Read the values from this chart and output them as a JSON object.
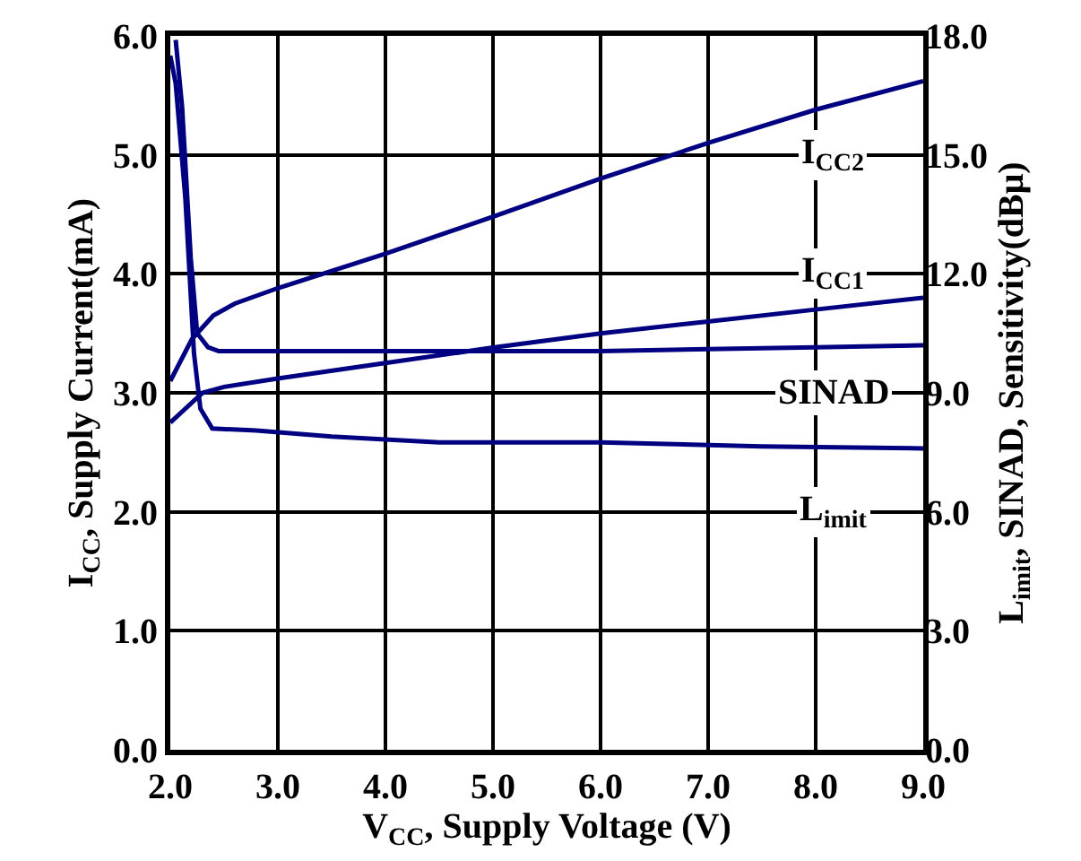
{
  "chart_data": {
    "type": "line",
    "xlabel": "V$_{CC}$, Supply Voltage (V)",
    "ylabel": "I$_{CC}$, Supply Current(mA)",
    "y2label": "L$_{imit}$, SINAD, Sensitivity(dBμ)",
    "xlim": [
      2,
      9
    ],
    "xticks": [
      {
        "value": 2,
        "label": "2.0"
      },
      {
        "value": 3,
        "label": "3.0"
      },
      {
        "value": 4,
        "label": "4.0"
      },
      {
        "value": 5,
        "label": "5.0"
      },
      {
        "value": 6,
        "label": "6.0"
      },
      {
        "value": 7,
        "label": "7.0"
      },
      {
        "value": 8,
        "label": "8.0"
      },
      {
        "value": 9,
        "label": "9.0"
      }
    ],
    "ylim": [
      0,
      6
    ],
    "yticks": [
      {
        "value": 0,
        "label": "0.0"
      },
      {
        "value": 1,
        "label": "1.0"
      },
      {
        "value": 2,
        "label": "2.0"
      },
      {
        "value": 3,
        "label": "3.0"
      },
      {
        "value": 4,
        "label": "4.0"
      },
      {
        "value": 5,
        "label": "5.0"
      },
      {
        "value": 6,
        "label": "6.0"
      }
    ],
    "y2lim": [
      0,
      18
    ],
    "y2ticks": [
      {
        "value": 0,
        "label": "0.0"
      },
      {
        "value": 3,
        "label": "3.0"
      },
      {
        "value": 6,
        "label": "6.0"
      },
      {
        "value": 9,
        "label": "9.0"
      },
      {
        "value": 12,
        "label": "12.0"
      },
      {
        "value": 15,
        "label": "15.0"
      },
      {
        "value": 18,
        "label": "18.0"
      }
    ],
    "grid": true,
    "legend": false,
    "marker": "none",
    "line_style": "solid",
    "series": [
      {
        "name": "I$_{CC2}$",
        "color": "#000080",
        "x": [
          2.0,
          2.2,
          2.4,
          2.6,
          3,
          4,
          5,
          6,
          7,
          8,
          9
        ],
        "values": [
          3.1,
          3.45,
          3.65,
          3.75,
          3.88,
          4.17,
          4.48,
          4.8,
          5.1,
          5.38,
          5.62
        ]
      },
      {
        "name": "I$_{CC1}$",
        "color": "#000080",
        "x": [
          2.0,
          2.3,
          2.5,
          3,
          4,
          5,
          6,
          7,
          8,
          9
        ],
        "values": [
          2.75,
          3.0,
          3.05,
          3.12,
          3.25,
          3.38,
          3.5,
          3.6,
          3.7,
          3.8
        ]
      },
      {
        "name": "SINAD",
        "color": "#000080",
        "axis": "y2",
        "x": [
          2.05,
          2.11,
          2.19,
          2.25,
          2.35,
          2.45,
          3,
          4,
          5,
          6,
          7,
          8,
          9
        ],
        "values": [
          17.9,
          16.2,
          12.4,
          10.5,
          10.15,
          10.05,
          10.05,
          10.05,
          10.05,
          10.05,
          10.1,
          10.15,
          10.2
        ]
      },
      {
        "name": "L$_{imit}$",
        "color": "#000080",
        "axis": "y2",
        "x": [
          2.0,
          2.05,
          2.14,
          2.22,
          2.28,
          2.39,
          2.8,
          3.5,
          4.5,
          6,
          7.5,
          9
        ],
        "values": [
          17.5,
          16.8,
          13.9,
          10.0,
          8.6,
          8.1,
          8.05,
          7.9,
          7.75,
          7.75,
          7.65,
          7.6
        ]
      }
    ]
  }
}
